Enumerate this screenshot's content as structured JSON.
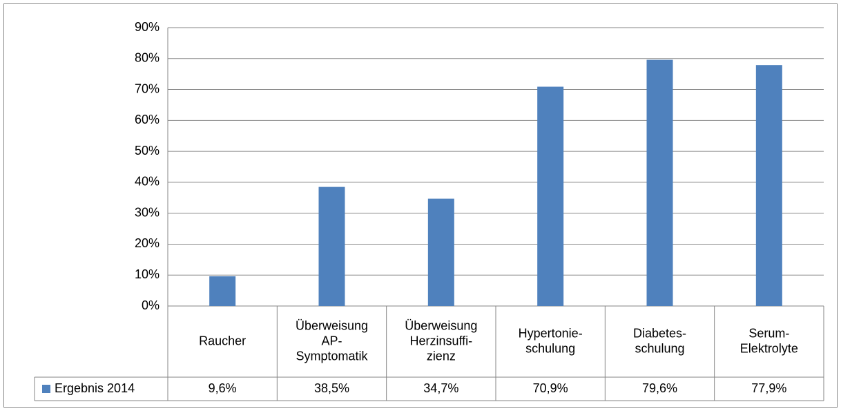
{
  "chart_data": {
    "type": "bar",
    "categories": [
      [
        "Raucher"
      ],
      [
        "Überweisung",
        "AP-",
        "Symptomatik"
      ],
      [
        "Überweisung",
        "Herzinsuffi-",
        "zienz"
      ],
      [
        "Hypertonie-",
        "schulung"
      ],
      [
        "Diabetes-",
        "schulung"
      ],
      [
        "Serum-",
        "Elektrolyte"
      ]
    ],
    "series": [
      {
        "name": "Ergebnis 2014",
        "color": "#4f81bd",
        "values": [
          9.6,
          38.5,
          34.7,
          70.9,
          79.6,
          77.9
        ],
        "value_labels": [
          "9,6%",
          "38,5%",
          "34,7%",
          "70,9%",
          "79,6%",
          "77,9%"
        ]
      }
    ],
    "ylim": [
      0,
      90
    ],
    "yticks": [
      {
        "value": 0,
        "label": "0%"
      },
      {
        "value": 10,
        "label": "10%"
      },
      {
        "value": 20,
        "label": "20%"
      },
      {
        "value": 30,
        "label": "30%"
      },
      {
        "value": 40,
        "label": "40%"
      },
      {
        "value": 50,
        "label": "50%"
      },
      {
        "value": 60,
        "label": "60%"
      },
      {
        "value": 70,
        "label": "70%"
      },
      {
        "value": 80,
        "label": "80%"
      },
      {
        "value": 90,
        "label": "90%"
      }
    ],
    "grid": true
  }
}
